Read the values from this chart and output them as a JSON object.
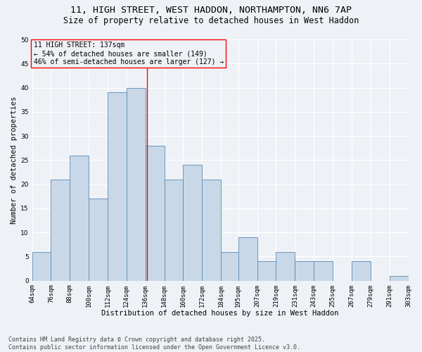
{
  "title_line1": "11, HIGH STREET, WEST HADDON, NORTHAMPTON, NN6 7AP",
  "title_line2": "Size of property relative to detached houses in West Haddon",
  "xlabel": "Distribution of detached houses by size in West Haddon",
  "ylabel": "Number of detached properties",
  "bar_values": [
    6,
    21,
    26,
    17,
    39,
    40,
    28,
    21,
    24,
    21,
    6,
    9,
    4,
    6,
    4,
    4,
    0,
    4,
    0,
    1
  ],
  "bin_labels": [
    "64sqm",
    "76sqm",
    "88sqm",
    "100sqm",
    "112sqm",
    "124sqm",
    "136sqm",
    "148sqm",
    "160sqm",
    "172sqm",
    "184sqm",
    "195sqm",
    "207sqm",
    "219sqm",
    "231sqm",
    "243sqm",
    "255sqm",
    "267sqm",
    "279sqm",
    "291sqm",
    "303sqm"
  ],
  "bin_edges": [
    64,
    76,
    88,
    100,
    112,
    124,
    136,
    148,
    160,
    172,
    184,
    195,
    207,
    219,
    231,
    243,
    255,
    267,
    279,
    291,
    303
  ],
  "bar_color": "#c8d8e8",
  "bar_edgecolor": "#5b8ab5",
  "property_size": 137,
  "annotation_text": "11 HIGH STREET: 137sqm\n← 54% of detached houses are smaller (149)\n46% of semi-detached houses are larger (127) →",
  "vline_color": "red",
  "annotation_box_edgecolor": "red",
  "ylim": [
    0,
    50
  ],
  "yticks": [
    0,
    5,
    10,
    15,
    20,
    25,
    30,
    35,
    40,
    45,
    50
  ],
  "background_color": "#eef2f7",
  "grid_color": "white",
  "footer_text": "Contains HM Land Registry data © Crown copyright and database right 2025.\nContains public sector information licensed under the Open Government Licence v3.0.",
  "title_fontsize": 9.5,
  "subtitle_fontsize": 8.5,
  "axis_label_fontsize": 7.5,
  "tick_fontsize": 6.5,
  "annotation_fontsize": 7,
  "footer_fontsize": 6
}
